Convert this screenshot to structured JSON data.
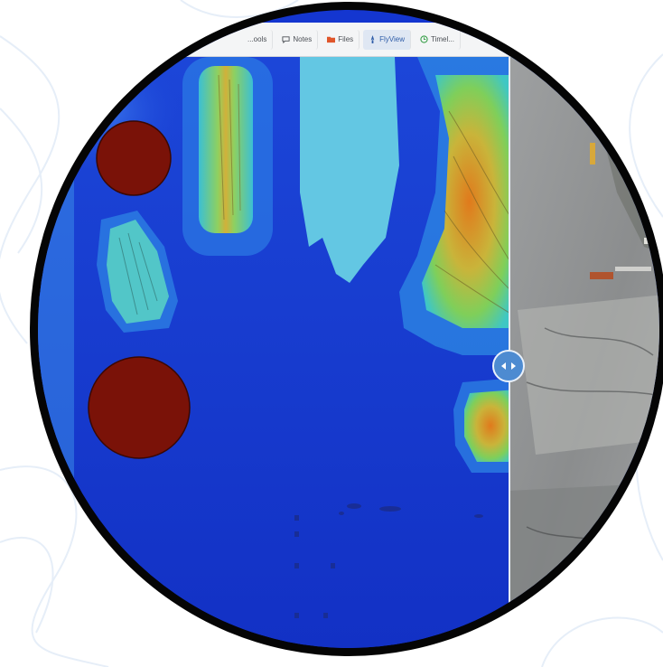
{
  "toolbar": {
    "tabs": [
      {
        "label": "...ools",
        "icon": "tools-icon"
      },
      {
        "label": "Notes",
        "icon": "notes-icon"
      },
      {
        "label": "Files",
        "icon": "folder-icon"
      },
      {
        "label": "FlyView",
        "icon": "flyview-icon",
        "active": true
      },
      {
        "label": "Timel...",
        "icon": "timeline-icon"
      }
    ]
  },
  "viewer": {
    "left_layer": "elevation-heatmap",
    "right_layer": "orthophoto",
    "split_handle_icon": "left-right-arrows-icon"
  },
  "colors": {
    "frame": "#050505",
    "heat_low": "#1436d0",
    "heat_mid": "#5fd0c8",
    "heat_high": "#e07a1c",
    "heat_peak": "#7a1208",
    "handle": "#4d8bd1"
  }
}
